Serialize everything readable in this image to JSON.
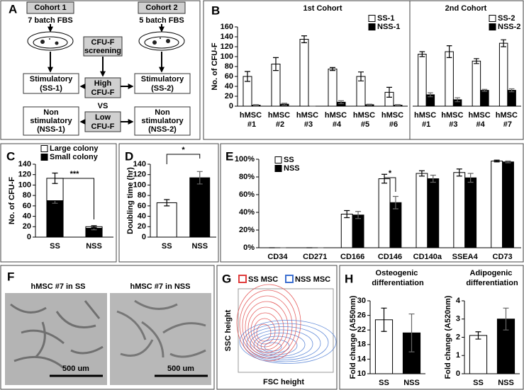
{
  "diagram": {
    "panel_label": "A",
    "nodes": [
      {
        "lines": [
          "Cohort 1"
        ]
      },
      {
        "lines": [
          "7 batch FBS"
        ]
      },
      {
        "lines": [
          "Cohort 2"
        ]
      },
      {
        "lines": [
          "5 batch FBS"
        ]
      },
      {
        "lines": [
          "CFU-F",
          "screening"
        ]
      },
      {
        "lines": [
          "Stimulatory",
          "(SS-1)"
        ]
      },
      {
        "lines": [
          "High",
          "CFU-F"
        ]
      },
      {
        "lines": [
          "Stimulatory",
          "(SS-2)"
        ]
      },
      {
        "lines": [
          "VS"
        ]
      },
      {
        "lines": [
          "Non",
          "stimulatory",
          "(NSS-1)"
        ]
      },
      {
        "lines": [
          "Low",
          "CFU-F"
        ]
      },
      {
        "lines": [
          "Non",
          "stimulatory",
          "(NSS-2)"
        ]
      }
    ]
  },
  "micrographs": {
    "panel_label": "F",
    "images": [
      {
        "caption": "hMSC #7 in SS",
        "scale_bar": "500 um"
      },
      {
        "caption": "hMSC #7 in NSS",
        "scale_bar": "500 um"
      }
    ]
  },
  "flow_cytometry": {
    "panel_label": "G",
    "legend": [
      {
        "name": "SS MSC",
        "color": "#e03c3c"
      },
      {
        "name": "NSS MSC",
        "color": "#3c6fd0"
      }
    ],
    "xlabel": "FSC height",
    "ylabel": "SSC height"
  },
  "chart_data": [
    {
      "type": "bar",
      "panel_label": "B",
      "title": "1st Cohort",
      "ylabel": "No. of CFU-F",
      "categories": [
        "hMSC #1",
        "hMSC #2",
        "hMSC #3",
        "hMSC #4",
        "hMSC #5",
        "hMSC #6"
      ],
      "series": [
        {
          "name": "SS-1",
          "color": "#ffffff",
          "values": [
            60,
            85,
            135,
            75,
            60,
            28
          ],
          "errors": [
            10,
            13,
            7,
            3,
            9,
            10
          ]
        },
        {
          "name": "NSS-1",
          "color": "#000000",
          "values": [
            2,
            4,
            0,
            8,
            3,
            2
          ],
          "errors": [
            1,
            2,
            0,
            3,
            1,
            1
          ]
        }
      ],
      "ylim": [
        0,
        160
      ],
      "yticks": [
        0,
        20,
        40,
        60,
        80,
        100,
        120,
        140,
        160
      ],
      "legend": "upper right"
    },
    {
      "type": "bar",
      "title": "2nd Cohort",
      "categories": [
        "hMSC #1",
        "hMSC #3",
        "hMSC #4",
        "hMSC #7"
      ],
      "series": [
        {
          "name": "SS-2",
          "color": "#ffffff",
          "values": [
            105,
            110,
            91,
            127
          ],
          "errors": [
            5,
            12,
            5,
            7
          ]
        },
        {
          "name": "NSS-2",
          "color": "#000000",
          "values": [
            23,
            13,
            32,
            32
          ],
          "errors": [
            4,
            4,
            2,
            3
          ]
        }
      ],
      "ylim": [
        0,
        160
      ],
      "legend": "upper right"
    },
    {
      "type": "bar",
      "panel_label": "C",
      "stacked": true,
      "ylabel": "No. of CFU-F",
      "annotation": "***",
      "categories": [
        "SS",
        "NSS"
      ],
      "series": [
        {
          "name": "Small colony",
          "color": "#000000",
          "values": [
            70,
            17
          ],
          "errors": [
            5,
            3
          ]
        },
        {
          "name": "Large colony",
          "color": "#ffffff",
          "values": [
            43,
            3
          ],
          "errors": [
            10,
            2
          ]
        }
      ],
      "ylim": [
        0,
        140
      ],
      "yticks": [
        0,
        20,
        40,
        60,
        80,
        100,
        120,
        140
      ],
      "legend": "upper left"
    },
    {
      "type": "bar",
      "panel_label": "D",
      "ylabel": "Doubling time (hr)",
      "annotation": "*",
      "categories": [
        "SS",
        "NSS"
      ],
      "values": [
        66,
        114
      ],
      "errors": [
        6,
        12
      ],
      "colors": [
        "#ffffff",
        "#000000"
      ],
      "ylim": [
        0,
        140
      ],
      "yticks": [
        0,
        20,
        40,
        60,
        80,
        100,
        120,
        140
      ]
    },
    {
      "type": "bar",
      "panel_label": "E",
      "annotation": "*",
      "categories": [
        "CD34",
        "CD271",
        "CD166",
        "CD146",
        "CD140a",
        "SSEA4",
        "CD73"
      ],
      "series": [
        {
          "name": "SS",
          "color": "#ffffff",
          "values": [
            0,
            0,
            38,
            78,
            84,
            85,
            98
          ],
          "errors": [
            0,
            0,
            4,
            5,
            3,
            4,
            1
          ]
        },
        {
          "name": "NSS",
          "color": "#000000",
          "values": [
            0,
            0,
            37,
            51,
            78,
            79,
            97
          ],
          "errors": [
            0,
            0,
            4,
            7,
            4,
            5,
            1
          ]
        }
      ],
      "ylim": [
        0,
        100
      ],
      "yticks": [
        {
          "value": 0,
          "label": "0%"
        },
        {
          "value": 20,
          "label": "20%"
        },
        {
          "value": 40,
          "label": "40%"
        },
        {
          "value": 60,
          "label": "60%"
        },
        {
          "value": 80,
          "label": "80%"
        },
        {
          "value": 100,
          "label": "100%"
        }
      ],
      "legend": "upper left"
    },
    {
      "type": "bar",
      "panel_label": "H",
      "title": "Osteogenic differentiation",
      "ylabel": "Fold change (A550nm)",
      "categories": [
        "SS",
        "NSS"
      ],
      "values": [
        24.8,
        21.2
      ],
      "errors": [
        3.2,
        5.2
      ],
      "colors": [
        "#ffffff",
        "#000000"
      ],
      "ylim": [
        10,
        30
      ],
      "yticks": [
        10,
        14,
        18,
        22,
        26,
        30
      ]
    },
    {
      "type": "bar",
      "title": "Adipogenic differentiation",
      "ylabel": "Fold change (A520nm)",
      "categories": [
        "SS",
        "NSS"
      ],
      "values": [
        2.1,
        3.0
      ],
      "errors": [
        0.2,
        0.6
      ],
      "colors": [
        "#ffffff",
        "#000000"
      ],
      "ylim": [
        0,
        4
      ],
      "yticks": [
        0,
        1,
        2,
        3,
        4
      ]
    }
  ]
}
